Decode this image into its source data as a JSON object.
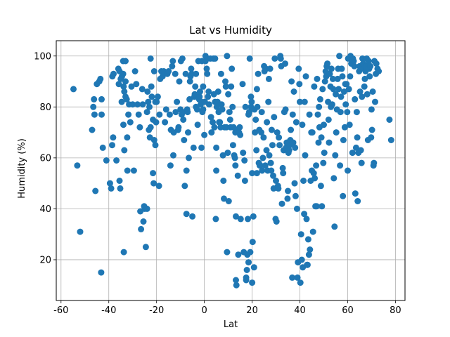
{
  "chart_data": {
    "type": "scatter",
    "title": "Lat vs Humidity",
    "xlabel": "Lat",
    "ylabel": "Humidity (%)",
    "xlim": [
      -62,
      84
    ],
    "ylim": [
      4,
      106
    ],
    "xticks": [
      -60,
      -40,
      -20,
      0,
      20,
      40,
      60,
      80
    ],
    "yticks": [
      20,
      40,
      60,
      80,
      100
    ],
    "grid": true,
    "marker_color": "#1f77b4",
    "points": [
      [
        -54.8,
        87
      ],
      [
        -53.2,
        57
      ],
      [
        -52.0,
        31
      ],
      [
        -47.0,
        71
      ],
      [
        -46.5,
        80
      ],
      [
        -46.2,
        83
      ],
      [
        -46.0,
        77
      ],
      [
        -45.6,
        47
      ],
      [
        -45.0,
        89
      ],
      [
        -44.0,
        90
      ],
      [
        -43.5,
        91
      ],
      [
        -43.0,
        83
      ],
      [
        -43.0,
        77
      ],
      [
        -43.2,
        15
      ],
      [
        -42.5,
        64
      ],
      [
        -41.0,
        59
      ],
      [
        -39.5,
        50
      ],
      [
        -39.0,
        48
      ],
      [
        -38.5,
        92
      ],
      [
        -38.6,
        65
      ],
      [
        -38.2,
        68
      ],
      [
        -38.0,
        93
      ],
      [
        -36.8,
        59
      ],
      [
        -36.0,
        95
      ],
      [
        -35.8,
        89
      ],
      [
        -35.5,
        94
      ],
      [
        -35.5,
        51
      ],
      [
        -35.2,
        48
      ],
      [
        -35.0,
        91
      ],
      [
        -34.6,
        82
      ],
      [
        -34.5,
        92
      ],
      [
        -34.0,
        98
      ],
      [
        -34.0,
        93
      ],
      [
        -33.8,
        88
      ],
      [
        -33.5,
        86
      ],
      [
        -33.9,
        73
      ],
      [
        -33.5,
        63
      ],
      [
        -33.7,
        23
      ],
      [
        -33.0,
        98
      ],
      [
        -33.0,
        90
      ],
      [
        -33.0,
        84
      ],
      [
        -32.5,
        83
      ],
      [
        -32.3,
        68
      ],
      [
        -32.2,
        55
      ],
      [
        -31.8,
        77
      ],
      [
        -31.5,
        81
      ],
      [
        -31.0,
        74
      ],
      [
        -30.5,
        88
      ],
      [
        -30.0,
        81
      ],
      [
        -29.5,
        55
      ],
      [
        -29.0,
        94
      ],
      [
        -28.5,
        89
      ],
      [
        -28.0,
        81
      ],
      [
        -27.5,
        77
      ],
      [
        -27.0,
        72
      ],
      [
        -26.8,
        39
      ],
      [
        -26.5,
        32
      ],
      [
        -26.0,
        87
      ],
      [
        -25.8,
        81
      ],
      [
        -25.5,
        35
      ],
      [
        -25.2,
        41
      ],
      [
        -25.0,
        40
      ],
      [
        -24.5,
        25
      ],
      [
        -24.0,
        40
      ],
      [
        -24.0,
        78
      ],
      [
        -23.8,
        86
      ],
      [
        -23.5,
        82
      ],
      [
        -23.2,
        71
      ],
      [
        -23.0,
        80
      ],
      [
        -22.8,
        68
      ],
      [
        -22.5,
        72
      ],
      [
        -22.5,
        99
      ],
      [
        -22.2,
        88
      ],
      [
        -22.0,
        84
      ],
      [
        -21.5,
        75
      ],
      [
        -21.5,
        54
      ],
      [
        -21.2,
        50
      ],
      [
        -21.0,
        67
      ],
      [
        -21.0,
        94
      ],
      [
        -20.5,
        82
      ],
      [
        -20.5,
        65
      ],
      [
        -20.2,
        74
      ],
      [
        -20.0,
        82
      ],
      [
        -19.5,
        84
      ],
      [
        -19.0,
        49
      ],
      [
        -18.8,
        77
      ],
      [
        -18.5,
        91
      ],
      [
        -18.0,
        94
      ],
      [
        -17.5,
        92
      ],
      [
        -17.0,
        94
      ],
      [
        -16.5,
        74
      ],
      [
        -16.0,
        79
      ],
      [
        -15.5,
        93
      ],
      [
        -15.0,
        94
      ],
      [
        -14.5,
        77
      ],
      [
        -14.2,
        57
      ],
      [
        -14.0,
        71
      ],
      [
        -13.5,
        96
      ],
      [
        -13.2,
        98
      ],
      [
        -13.0,
        61
      ],
      [
        -12.8,
        70
      ],
      [
        -12.2,
        93
      ],
      [
        -12.0,
        78
      ],
      [
        -11.5,
        82
      ],
      [
        -11.0,
        71
      ],
      [
        -10.8,
        72
      ],
      [
        -10.5,
        90
      ],
      [
        -10.0,
        79
      ],
      [
        -9.8,
        98
      ],
      [
        -9.5,
        77
      ],
      [
        -9.2,
        99
      ],
      [
        -9.0,
        78
      ],
      [
        -8.8,
        75
      ],
      [
        -8.5,
        67
      ],
      [
        -8.2,
        49
      ],
      [
        -7.8,
        93
      ],
      [
        -7.5,
        38
      ],
      [
        -7.5,
        55
      ],
      [
        -7.2,
        79
      ],
      [
        -7.0,
        78
      ],
      [
        -6.8,
        70
      ],
      [
        -6.5,
        60
      ],
      [
        -6.2,
        83
      ],
      [
        -6.0,
        90
      ],
      [
        -5.8,
        92
      ],
      [
        -5.5,
        95
      ],
      [
        -5.2,
        93
      ],
      [
        -5.0,
        37
      ],
      [
        -4.5,
        64
      ],
      [
        -4.2,
        84
      ],
      [
        -4.0,
        85
      ],
      [
        -3.8,
        88
      ],
      [
        -3.5,
        93
      ],
      [
        -3.5,
        80
      ],
      [
        -3.0,
        79
      ],
      [
        -2.8,
        73
      ],
      [
        -2.5,
        98
      ],
      [
        -2.2,
        83
      ],
      [
        -2.0,
        84
      ],
      [
        -1.8,
        86
      ],
      [
        -1.5,
        81
      ],
      [
        -1.2,
        82
      ],
      [
        -1.2,
        64
      ],
      [
        -1.0,
        98
      ],
      [
        -0.8,
        78
      ],
      [
        -0.5,
        79
      ],
      [
        -0.5,
        88
      ],
      [
        0.0,
        69
      ],
      [
        0.2,
        82
      ],
      [
        0.5,
        98
      ],
      [
        0.5,
        100
      ],
      [
        1.0,
        95
      ],
      [
        1.2,
        93
      ],
      [
        1.5,
        84
      ],
      [
        1.8,
        86
      ],
      [
        2.0,
        81
      ],
      [
        2.5,
        99
      ],
      [
        2.8,
        76
      ],
      [
        3.0,
        70
      ],
      [
        3.5,
        74
      ],
      [
        3.8,
        99
      ],
      [
        4.0,
        85
      ],
      [
        4.2,
        72
      ],
      [
        4.5,
        82
      ],
      [
        4.5,
        99
      ],
      [
        4.8,
        36
      ],
      [
        5.0,
        64
      ],
      [
        5.0,
        55
      ],
      [
        5.2,
        80
      ],
      [
        5.5,
        82
      ],
      [
        5.8,
        86
      ],
      [
        6.0,
        78
      ],
      [
        6.2,
        74
      ],
      [
        6.5,
        74
      ],
      [
        6.8,
        72
      ],
      [
        7.0,
        93
      ],
      [
        7.2,
        81
      ],
      [
        7.5,
        79
      ],
      [
        7.8,
        61
      ],
      [
        8.0,
        51
      ],
      [
        8.2,
        44
      ],
      [
        8.5,
        72
      ],
      [
        8.8,
        90
      ],
      [
        9.0,
        88
      ],
      [
        9.2,
        72
      ],
      [
        9.5,
        100
      ],
      [
        9.5,
        23
      ],
      [
        9.8,
        62
      ],
      [
        10.0,
        85
      ],
      [
        10.2,
        43
      ],
      [
        10.5,
        78
      ],
      [
        10.8,
        75
      ],
      [
        11.0,
        72
      ],
      [
        11.2,
        88
      ],
      [
        11.5,
        95
      ],
      [
        11.8,
        80
      ],
      [
        12.0,
        65
      ],
      [
        12.2,
        72
      ],
      [
        12.5,
        61
      ],
      [
        12.8,
        60
      ],
      [
        13.0,
        70
      ],
      [
        13.0,
        57
      ],
      [
        13.2,
        37
      ],
      [
        13.2,
        12
      ],
      [
        13.4,
        10
      ],
      [
        13.8,
        71
      ],
      [
        14.0,
        53
      ],
      [
        14.2,
        22
      ],
      [
        14.5,
        70
      ],
      [
        14.8,
        72
      ],
      [
        15.0,
        69
      ],
      [
        15.2,
        36
      ],
      [
        16.0,
        89
      ],
      [
        16.2,
        62
      ],
      [
        16.5,
        23
      ],
      [
        16.8,
        59
      ],
      [
        17.0,
        51
      ],
      [
        17.2,
        80
      ],
      [
        17.5,
        12
      ],
      [
        17.5,
        13
      ],
      [
        17.8,
        16
      ],
      [
        18.0,
        22
      ],
      [
        18.2,
        36
      ],
      [
        18.5,
        77
      ],
      [
        18.5,
        19
      ],
      [
        18.8,
        78
      ],
      [
        19.0,
        99
      ],
      [
        19.2,
        23
      ],
      [
        19.5,
        84
      ],
      [
        19.5,
        80
      ],
      [
        19.8,
        82
      ],
      [
        20.0,
        54
      ],
      [
        20.0,
        11
      ],
      [
        20.2,
        27
      ],
      [
        20.5,
        37
      ],
      [
        20.8,
        17
      ],
      [
        21.0,
        79
      ],
      [
        21.2,
        70
      ],
      [
        21.5,
        75
      ],
      [
        21.8,
        63
      ],
      [
        22.0,
        54
      ],
      [
        22.0,
        87
      ],
      [
        22.2,
        80
      ],
      [
        22.5,
        93
      ],
      [
        22.8,
        58
      ],
      [
        23.0,
        71
      ],
      [
        23.2,
        57
      ],
      [
        23.5,
        57
      ],
      [
        23.8,
        70
      ],
      [
        24.0,
        78
      ],
      [
        24.2,
        55
      ],
      [
        24.5,
        60
      ],
      [
        24.8,
        68
      ],
      [
        25.0,
        96
      ],
      [
        25.2,
        94
      ],
      [
        25.5,
        57
      ],
      [
        25.8,
        95
      ],
      [
        26.0,
        63
      ],
      [
        26.2,
        74
      ],
      [
        26.5,
        55
      ],
      [
        26.8,
        82
      ],
      [
        27.0,
        91
      ],
      [
        27.2,
        61
      ],
      [
        27.5,
        95
      ],
      [
        27.8,
        58
      ],
      [
        28.0,
        55
      ],
      [
        28.2,
        71
      ],
      [
        28.5,
        65
      ],
      [
        28.8,
        53
      ],
      [
        29.0,
        48
      ],
      [
        29.2,
        76
      ],
      [
        29.5,
        99
      ],
      [
        29.8,
        36
      ],
      [
        30.0,
        51
      ],
      [
        30.2,
        35
      ],
      [
        30.5,
        70
      ],
      [
        30.8,
        49
      ],
      [
        31.0,
        48
      ],
      [
        31.2,
        68
      ],
      [
        31.5,
        65
      ],
      [
        31.8,
        100
      ],
      [
        32.0,
        99
      ],
      [
        32.2,
        96
      ],
      [
        32.5,
        42
      ],
      [
        32.8,
        56
      ],
      [
        33.0,
        54
      ],
      [
        33.2,
        63
      ],
      [
        33.5,
        78
      ],
      [
        33.8,
        97
      ],
      [
        34.0,
        79
      ],
      [
        34.2,
        64
      ],
      [
        34.5,
        66
      ],
      [
        34.8,
        44
      ],
      [
        35.0,
        47
      ],
      [
        35.2,
        62
      ],
      [
        35.5,
        63
      ],
      [
        35.8,
        65
      ],
      [
        36.0,
        67
      ],
      [
        36.2,
        71
      ],
      [
        36.5,
        90
      ],
      [
        36.8,
        13
      ],
      [
        37.0,
        77
      ],
      [
        37.2,
        66
      ],
      [
        37.5,
        86
      ],
      [
        37.8,
        50
      ],
      [
        38.0,
        64
      ],
      [
        38.2,
        45
      ],
      [
        38.5,
        74
      ],
      [
        38.8,
        40
      ],
      [
        39.0,
        13
      ],
      [
        39.2,
        19
      ],
      [
        39.5,
        95
      ],
      [
        39.8,
        89
      ],
      [
        40.0,
        82
      ],
      [
        40.2,
        11
      ],
      [
        40.5,
        30
      ],
      [
        40.8,
        20
      ],
      [
        41.0,
        73
      ],
      [
        41.2,
        17
      ],
      [
        41.5,
        51
      ],
      [
        41.8,
        38
      ],
      [
        42.0,
        82
      ],
      [
        42.2,
        61
      ],
      [
        42.5,
        92
      ],
      [
        42.8,
        36
      ],
      [
        43.0,
        18
      ],
      [
        43.2,
        18
      ],
      [
        43.5,
        28
      ],
      [
        43.8,
        22
      ],
      [
        44.0,
        77
      ],
      [
        44.2,
        24
      ],
      [
        44.5,
        51
      ],
      [
        44.8,
        70
      ],
      [
        45.0,
        55
      ],
      [
        45.2,
        70
      ],
      [
        45.5,
        31
      ],
      [
        45.8,
        54
      ],
      [
        46.0,
        88
      ],
      [
        46.2,
        52
      ],
      [
        46.5,
        41
      ],
      [
        46.8,
        57
      ],
      [
        47.0,
        41
      ],
      [
        47.2,
        91
      ],
      [
        47.5,
        77
      ],
      [
        47.8,
        66
      ],
      [
        48.0,
        80
      ],
      [
        48.2,
        72
      ],
      [
        48.5,
        83
      ],
      [
        48.8,
        49
      ],
      [
        49.0,
        68
      ],
      [
        49.2,
        41
      ],
      [
        49.5,
        87
      ],
      [
        49.8,
        58
      ],
      [
        50.0,
        73
      ],
      [
        50.2,
        62
      ],
      [
        50.5,
        90
      ],
      [
        50.8,
        94
      ],
      [
        51.0,
        92
      ],
      [
        51.2,
        96
      ],
      [
        51.5,
        97
      ],
      [
        51.8,
        82
      ],
      [
        52.0,
        75
      ],
      [
        52.2,
        66
      ],
      [
        52.5,
        93
      ],
      [
        52.8,
        88
      ],
      [
        53.0,
        80
      ],
      [
        53.2,
        95
      ],
      [
        53.5,
        81
      ],
      [
        53.8,
        91
      ],
      [
        54.0,
        87
      ],
      [
        54.2,
        52
      ],
      [
        54.5,
        33
      ],
      [
        54.8,
        61
      ],
      [
        55.0,
        85
      ],
      [
        55.2,
        70
      ],
      [
        55.5,
        79
      ],
      [
        55.8,
        91
      ],
      [
        56.0,
        95
      ],
      [
        56.2,
        87
      ],
      [
        56.5,
        100
      ],
      [
        56.8,
        57
      ],
      [
        57.0,
        78
      ],
      [
        57.2,
        84
      ],
      [
        57.5,
        95
      ],
      [
        57.8,
        92
      ],
      [
        58.0,
        45
      ],
      [
        58.2,
        67
      ],
      [
        58.5,
        86
      ],
      [
        58.8,
        72
      ],
      [
        59.0,
        89
      ],
      [
        59.2,
        81
      ],
      [
        59.5,
        89
      ],
      [
        59.8,
        78
      ],
      [
        60.0,
        55
      ],
      [
        60.2,
        99
      ],
      [
        60.5,
        87
      ],
      [
        60.8,
        73
      ],
      [
        61.0,
        92
      ],
      [
        61.2,
        100
      ],
      [
        61.5,
        97
      ],
      [
        61.8,
        97
      ],
      [
        62.0,
        62
      ],
      [
        62.2,
        99
      ],
      [
        62.5,
        98
      ],
      [
        62.8,
        96
      ],
      [
        63.0,
        83
      ],
      [
        63.2,
        46
      ],
      [
        63.5,
        64
      ],
      [
        63.8,
        78
      ],
      [
        64.0,
        68
      ],
      [
        64.2,
        43
      ],
      [
        64.5,
        62
      ],
      [
        64.8,
        94
      ],
      [
        65.0,
        96
      ],
      [
        65.2,
        86
      ],
      [
        65.5,
        63
      ],
      [
        65.8,
        58
      ],
      [
        66.0,
        84
      ],
      [
        66.2,
        99
      ],
      [
        66.5,
        97
      ],
      [
        66.8,
        95
      ],
      [
        67.0,
        88
      ],
      [
        67.2,
        91
      ],
      [
        67.5,
        94
      ],
      [
        67.8,
        96
      ],
      [
        68.0,
        99
      ],
      [
        68.2,
        85
      ],
      [
        68.5,
        67
      ],
      [
        68.8,
        98
      ],
      [
        69.0,
        95
      ],
      [
        69.2,
        92
      ],
      [
        69.5,
        96
      ],
      [
        69.8,
        68
      ],
      [
        70.0,
        79
      ],
      [
        70.2,
        71
      ],
      [
        70.5,
        86
      ],
      [
        70.8,
        57
      ],
      [
        71.0,
        58
      ],
      [
        71.2,
        98
      ],
      [
        71.5,
        82
      ],
      [
        71.8,
        93
      ],
      [
        72.0,
        97
      ],
      [
        72.5,
        95
      ],
      [
        73.0,
        94
      ],
      [
        77.5,
        75
      ],
      [
        78.2,
        67
      ]
    ]
  }
}
